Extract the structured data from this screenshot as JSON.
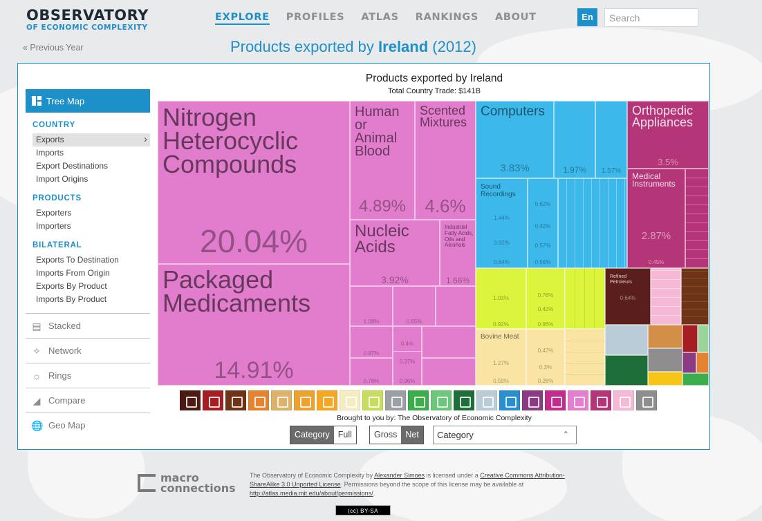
{
  "header": {
    "logo_line1": "OBSERVATORY",
    "logo_line2": "OF ECONOMIC COMPLEXITY",
    "nav": [
      "EXPLORE",
      "PROFILES",
      "ATLAS",
      "RANKINGS",
      "ABOUT"
    ],
    "active_nav": "EXPLORE",
    "lang": "En",
    "search_placeholder": "Search"
  },
  "prev_year": "« Previous Year",
  "page_title": {
    "prefix": "Products exported by",
    "country": "Ireland",
    "year": "(2012)"
  },
  "sidebar": {
    "active_view": "Tree Map",
    "sections": [
      {
        "title": "COUNTRY",
        "items": [
          "Exports",
          "Imports",
          "Export Destinations",
          "Import Origins"
        ]
      },
      {
        "title": "PRODUCTS",
        "items": [
          "Exporters",
          "Importers"
        ]
      },
      {
        "title": "BILATERAL",
        "items": [
          "Exports To Destination",
          "Imports From Origin",
          "Exports By Product",
          "Imports By Product"
        ]
      }
    ],
    "selected_item": "Exports",
    "tools": [
      "Stacked",
      "Network",
      "Rings",
      "Compare",
      "Geo Map"
    ]
  },
  "viz": {
    "title": "Products exported by Ireland",
    "subtitle": "Total Country Trade: $141B",
    "credit": "Brought to you by: The Observatory of Economic Complexity"
  },
  "treemap": {
    "tiles": [
      {
        "label": "Nitrogen Heterocyclic Compounds",
        "pct": "20.04%",
        "color": "#e47fcf"
      },
      {
        "label": "Packaged Medicaments",
        "pct": "14.91%",
        "color": "#e47fcf"
      },
      {
        "label": "Human or Animal Blood",
        "pct": "4.89%",
        "color": "#e47fcf"
      },
      {
        "label": "Scented Mixtures",
        "pct": "4.6%",
        "color": "#e47fcf"
      },
      {
        "label": "Nucleic Acids",
        "pct": "3.92%",
        "color": "#e47fcf"
      },
      {
        "label": "Industrial Fatty Acids, Oils and Alcohols",
        "pct": "1.66%",
        "color": "#e47fcf"
      },
      {
        "label": "Computers",
        "pct": "3.83%",
        "color": "#3cb8eb"
      },
      {
        "label": "Sound Recordings",
        "pct": "1.44%",
        "color": "#3cb8eb"
      },
      {
        "label": "Orthopedic Appliances",
        "pct": "3.5%",
        "color": "#b53579"
      },
      {
        "label": "Medical Instruments",
        "pct": "2.87%",
        "color": "#b53579"
      },
      {
        "label": "Refined Petroleum",
        "pct": "0.64%",
        "color": "#5a1f1c"
      },
      {
        "label": "Bovine Meat",
        "pct": "1.27%",
        "color": "#f9e4a4"
      }
    ],
    "small_pcts": [
      "1.97%",
      "1.57%",
      "0.62%",
      "0.42%",
      "0.92%",
      "0.57%",
      "0.64%",
      "0.56%",
      "0.45%",
      "1.08%",
      "0.65%",
      "0.87%",
      "0.4%",
      "0.37%",
      "0.78%",
      "0.96%",
      "1.03%",
      "0.76%",
      "0.42%",
      "0.92%",
      "0.96%",
      "0.47%",
      "0.3%",
      "0.59%",
      "0.26%"
    ]
  },
  "category_icons": [
    "#4d1b14",
    "#a51e23",
    "#6e3417",
    "#e58430",
    "#ddb26a",
    "#eca22e",
    "#f5a623",
    "#f6ecc2",
    "#c8dc5d",
    "#9aa0a3",
    "#3cad4b",
    "#6dc77a",
    "#1d6e38",
    "#b9ccd7",
    "#2a8fd1",
    "#8a3b84",
    "#c22d8b",
    "#e47fcf",
    "#b53579",
    "#f6b9d5",
    "#8e8e8e"
  ],
  "controls": {
    "type_toggle": [
      "Category",
      "Full"
    ],
    "type_active": "Category",
    "trade_toggle": [
      "Gross",
      "Net"
    ],
    "trade_active": "Net",
    "color_by": "Category"
  },
  "footer": {
    "brand_line1": "macro",
    "brand_line2": "connections",
    "license_text_1": "The Observatory of Economic Complexity by",
    "license_author": "Alexander Simoes",
    "license_text_2": "is licensed under a",
    "license_name": "Creative Commons Attribution-ShareAlike 3.0 Unported License",
    "license_text_3": ". Permissions beyond the scope of this license may be available at",
    "license_url": "http://atlas.media.mit.edu/about/permissions/",
    "license_text_4": ".",
    "cc_badge": "(cc) BY-SA"
  }
}
